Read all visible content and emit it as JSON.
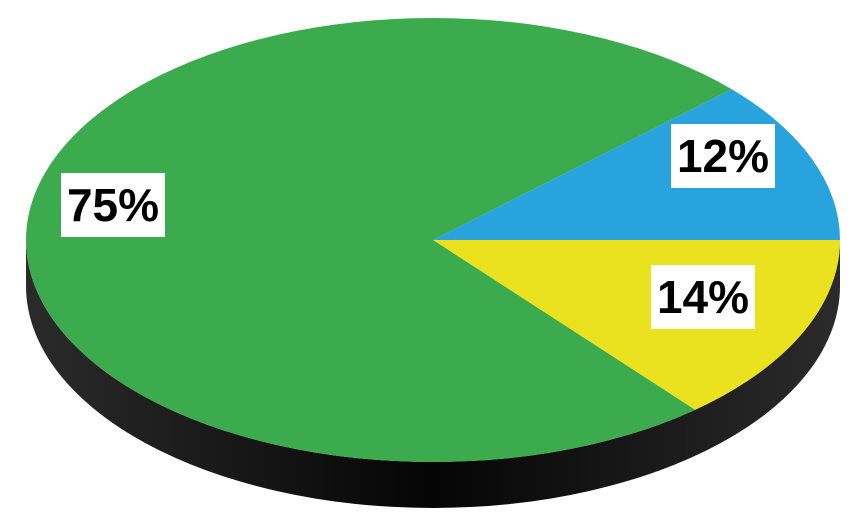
{
  "chart_data": {
    "type": "pie",
    "style": "3d",
    "categories": [
      "",
      "",
      ""
    ],
    "values": [
      75,
      14,
      12
    ],
    "labels": [
      "75%",
      "14%",
      "12%"
    ],
    "colors": [
      "#3bab4d",
      "#eae21e",
      "#28a3dd"
    ],
    "edge_color": "#1b1b1b",
    "title": ""
  }
}
